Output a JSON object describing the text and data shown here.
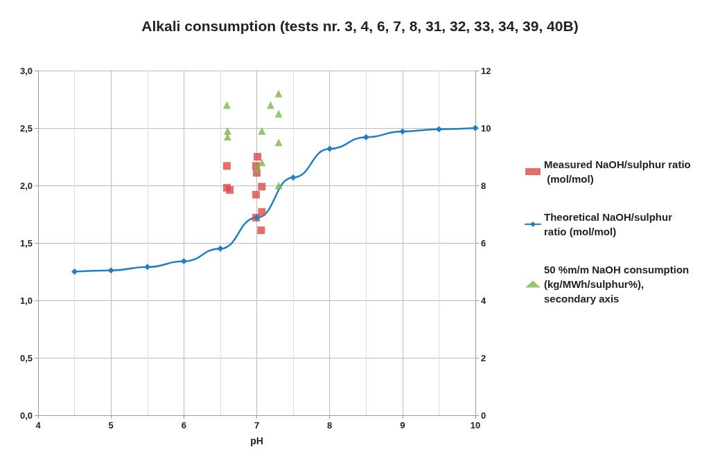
{
  "chart_data": {
    "type": "scatter",
    "title": "Alkali consumption (tests nr. 3, 4, 6, 7, 8, 31, 32, 33, 34, 39, 40B)",
    "xlabel": "pH",
    "xlim": [
      4,
      10
    ],
    "xticks": [
      4,
      5,
      6,
      7,
      8,
      9,
      10
    ],
    "ylim": [
      0,
      3
    ],
    "yticks": [
      {
        "value": 0,
        "label": "0,0"
      },
      {
        "value": 0.5,
        "label": "0,5"
      },
      {
        "value": 1,
        "label": "1,0"
      },
      {
        "value": 1.5,
        "label": "1,5"
      },
      {
        "value": 2,
        "label": "2,0"
      },
      {
        "value": 2.5,
        "label": "2,5"
      },
      {
        "value": 3,
        "label": "3,0"
      }
    ],
    "y2lim": [
      0,
      12
    ],
    "y2ticks": [
      0,
      2,
      4,
      6,
      8,
      10,
      12
    ],
    "grid": true,
    "legend": "right",
    "series": [
      {
        "name": "Measured NaOH/sulphur ratio (mol/mol)",
        "marker": "square",
        "color": "#e0484a",
        "x": [
          6.59,
          6.59,
          6.63,
          7.01,
          6.99,
          7.0,
          6.99,
          7.07,
          6.99,
          7.07,
          7.06
        ],
        "values": [
          2.17,
          1.98,
          1.96,
          2.25,
          2.17,
          2.11,
          1.92,
          1.99,
          1.72,
          1.77,
          1.61
        ]
      },
      {
        "name": "Theoretical NaOH/sulphur ratio (mol/mol)",
        "type": "line",
        "marker": "diamond",
        "line_style": "solid",
        "color": "#1f7fc0",
        "x": [
          4.5,
          5,
          5.5,
          6,
          6.5,
          7,
          7.5,
          8,
          8.5,
          9,
          9.5,
          10
        ],
        "values": [
          1.25,
          1.26,
          1.29,
          1.34,
          1.45,
          1.72,
          2.07,
          2.32,
          2.42,
          2.47,
          2.49,
          2.5
        ]
      },
      {
        "name": "50 %m/m NaOH consumption (kg/MWh/sulphur%), secondary axis",
        "marker": "triangle",
        "axis": "y2",
        "color": "#7ab648",
        "x": [
          6.59,
          6.6,
          6.6,
          7.07,
          7.19,
          7.3,
          7.3,
          7.3,
          7.07,
          7.0,
          7.3
        ],
        "values": [
          10.8,
          9.9,
          9.7,
          9.9,
          10.8,
          11.2,
          10.5,
          9.5,
          8.8,
          8.6,
          8.0
        ]
      }
    ]
  }
}
